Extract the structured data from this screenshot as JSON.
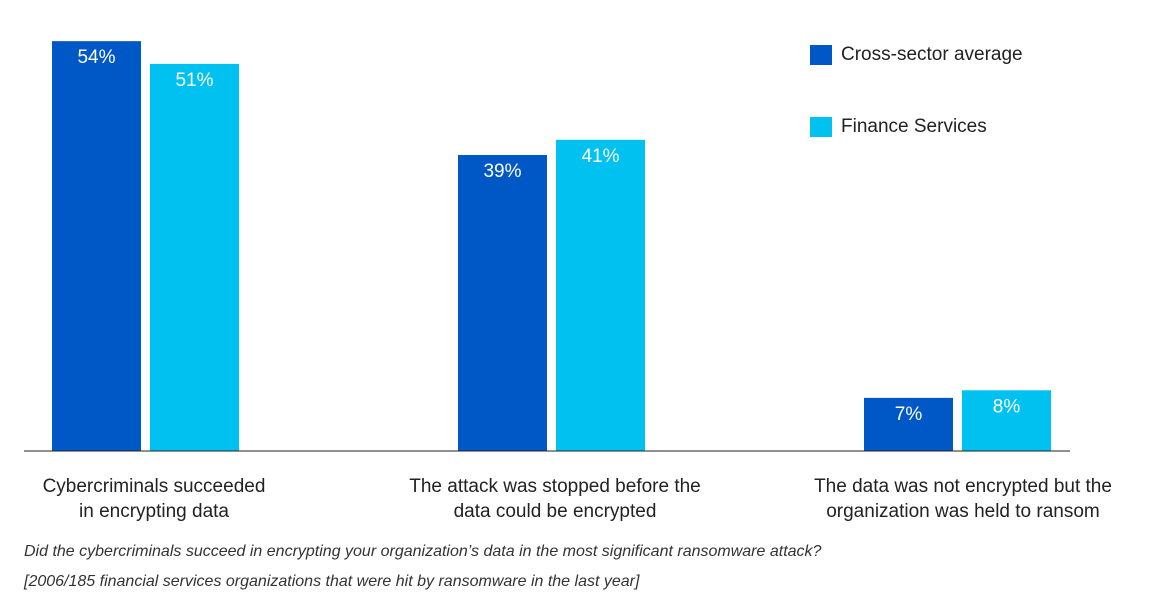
{
  "chart_data": {
    "type": "bar",
    "categories": [
      "Cybercriminals succeeded in encrypting data",
      "The attack was stopped before the data could be encrypted",
      "The data was not encrypted but the organization was held to ransom"
    ],
    "category_lines": [
      [
        "Cybercriminals succeeded",
        "in encrypting data"
      ],
      [
        "The attack was stopped before the",
        "data could be encrypted"
      ],
      [
        "The data was not encrypted but the",
        "organization was held to ransom"
      ]
    ],
    "series": [
      {
        "name": "Cross-sector average",
        "color": "#0058c6",
        "values": [
          54,
          39,
          7
        ],
        "labels": [
          "54%",
          "39%",
          "7%"
        ]
      },
      {
        "name": "Finance Services",
        "color": "#00c1ef",
        "values": [
          51,
          41,
          8
        ],
        "labels": [
          "51%",
          "41%",
          "8%"
        ]
      }
    ],
    "ylim": [
      0,
      55
    ],
    "grid": false,
    "legend_position": "top-right",
    "caption": "Did the cybercriminals succeed in encrypting your organization’s data in the most significant ransomware attack?",
    "note": "[2006/185 financial services organizations that were hit by ransomware in the last year]"
  }
}
